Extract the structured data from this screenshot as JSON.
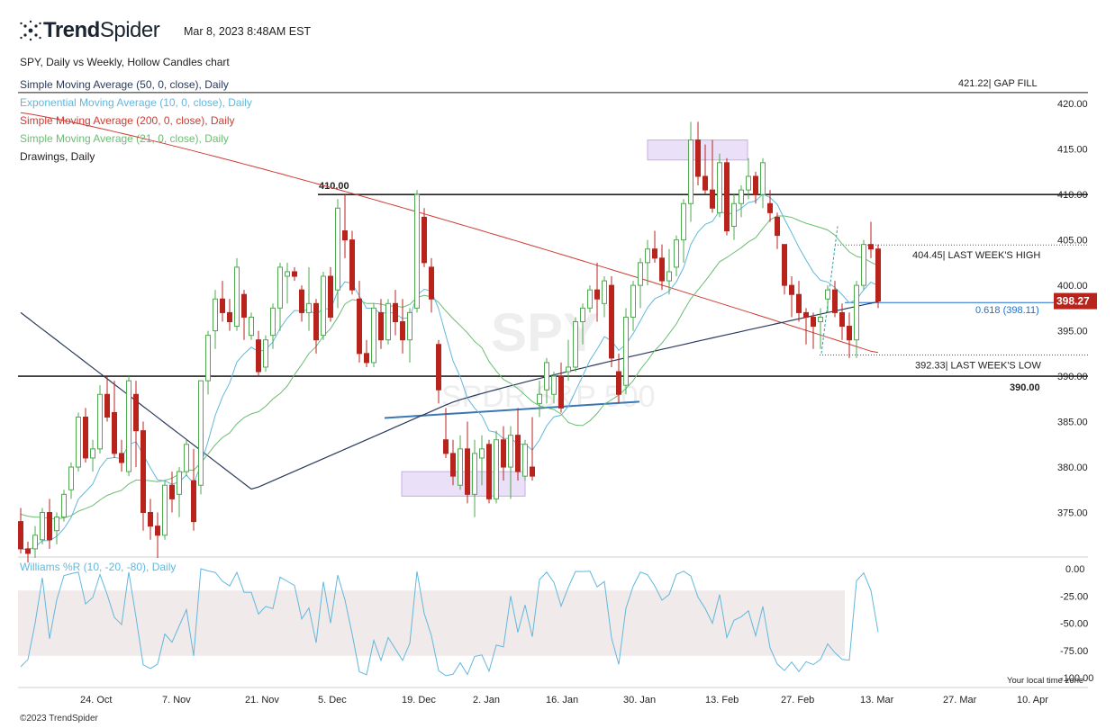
{
  "header": {
    "brand_prefix": "Trend",
    "brand_suffix": "Spider",
    "timestamp": "Mar 8, 2023 8:48AM EST",
    "chart_title": "SPY, Daily vs Weekly, Hollow Candles chart"
  },
  "legend": [
    {
      "label": "Simple Moving Average (50, 0, close), Daily",
      "color": "#2b3a5c"
    },
    {
      "label": "Exponential Moving Average (10, 0, close), Daily",
      "color": "#63b7dc"
    },
    {
      "label": "Simple Moving Average (200, 0, close), Daily",
      "color": "#cf3b33"
    },
    {
      "label": "Simple Moving Average (21, 0, close), Daily",
      "color": "#6cbd74"
    },
    {
      "label": "Drawings, Daily",
      "color": "#222222"
    }
  ],
  "watermark": {
    "symbol": "SPY",
    "name": "SPDR S&P 500"
  },
  "footer": {
    "copyright": "©2023 TrendSpider",
    "local_time": "Your local time zone"
  },
  "chart_data": {
    "type": "candlestick",
    "colors": {
      "up": "#4ea84e",
      "down": "#b8231c",
      "price_badge": "#b8231c",
      "fib": "#1e6fd1",
      "zone": "#e6d9f7",
      "zone_border": "#b79ae2"
    },
    "price_axis": {
      "min": 370,
      "max": 422,
      "ticks": [
        375,
        380,
        385,
        390,
        395,
        400,
        405,
        410,
        415,
        420
      ],
      "tick_labels": [
        "375.00",
        "380.00",
        "385.00",
        "390.00",
        "395.00",
        "400.00",
        "405.00",
        "410.00",
        "415.00",
        "420.00"
      ]
    },
    "x_axis": {
      "labels": [
        "24. Oct",
        "7. Nov",
        "21. Nov",
        "5. Dec",
        "19. Dec",
        "2. Jan",
        "16. Jan",
        "30. Jan",
        "13. Feb",
        "27. Feb",
        "13. Mar",
        "27. Mar",
        "10. Apr"
      ]
    },
    "current_price": "398.27",
    "levels": [
      {
        "value": 421.22,
        "label": "421.22| GAP FILL",
        "style": "solid"
      },
      {
        "value": 410.0,
        "label": "410.00",
        "style": "solid"
      },
      {
        "value": 390.0,
        "label": "390.00",
        "style": "solid"
      },
      {
        "value": 404.45,
        "label": "404.45| LAST WEEK'S HIGH",
        "style": "dotted"
      },
      {
        "value": 392.33,
        "label": "392.33| LAST WEEK'S LOW",
        "style": "dotted"
      },
      {
        "value": 398.11,
        "label": "0.618 (398.11)",
        "style": "fib"
      }
    ],
    "candles": [
      [
        374.0,
        375.5,
        370.5,
        371.0
      ],
      [
        371.0,
        371.8,
        369.5,
        370.5
      ],
      [
        371.0,
        373.5,
        370.0,
        372.5
      ],
      [
        372.0,
        375.5,
        371.5,
        375.0
      ],
      [
        375.0,
        376.5,
        371.0,
        372.0
      ],
      [
        373.0,
        375.0,
        371.5,
        374.5
      ],
      [
        374.5,
        377.5,
        374.0,
        377.0
      ],
      [
        377.5,
        380.5,
        376.5,
        380.0
      ],
      [
        380.0,
        386.0,
        379.5,
        385.5
      ],
      [
        385.5,
        386.5,
        380.5,
        381.0
      ],
      [
        381.0,
        383.0,
        379.5,
        382.0
      ],
      [
        382.0,
        389.0,
        381.5,
        388.0
      ],
      [
        388.0,
        390.0,
        385.0,
        385.5
      ],
      [
        386.0,
        389.5,
        381.0,
        381.5
      ],
      [
        381.5,
        383.0,
        379.5,
        380.5
      ],
      [
        379.5,
        390.0,
        379.0,
        389.5
      ],
      [
        388.0,
        389.5,
        380.0,
        384.0
      ],
      [
        384.0,
        385.0,
        373.0,
        375.0
      ],
      [
        375.0,
        376.5,
        372.0,
        373.5
      ],
      [
        373.5,
        375.0,
        370.0,
        372.5
      ],
      [
        372.5,
        378.5,
        372.0,
        378.0
      ],
      [
        378.0,
        379.5,
        375.0,
        376.5
      ],
      [
        377.0,
        380.0,
        374.5,
        379.5
      ],
      [
        379.5,
        383.0,
        379.0,
        382.5
      ],
      [
        378.5,
        382.0,
        373.0,
        374.0
      ],
      [
        378.0,
        389.5,
        377.0,
        389.5
      ],
      [
        389.5,
        395.0,
        388.0,
        394.5
      ],
      [
        395.0,
        399.5,
        393.0,
        398.5
      ],
      [
        398.5,
        400.5,
        396.0,
        397.0
      ],
      [
        397.0,
        398.5,
        395.0,
        396.0
      ],
      [
        395.5,
        403.0,
        395.0,
        402.0
      ],
      [
        399.0,
        399.5,
        394.0,
        396.5
      ],
      [
        394.5,
        397.0,
        394.0,
        396.5
      ],
      [
        394.0,
        395.0,
        390.0,
        390.5
      ],
      [
        391.0,
        394.5,
        390.5,
        394.0
      ],
      [
        394.5,
        398.0,
        393.0,
        397.5
      ],
      [
        397.5,
        402.5,
        395.0,
        402.0
      ],
      [
        401.0,
        402.5,
        398.0,
        401.5
      ],
      [
        401.5,
        402.0,
        400.5,
        401.0
      ],
      [
        399.5,
        400.0,
        396.0,
        397.0
      ],
      [
        397.0,
        402.0,
        395.0,
        398.0
      ],
      [
        398.0,
        398.5,
        392.5,
        394.0
      ],
      [
        394.5,
        401.5,
        394.0,
        401.0
      ],
      [
        401.0,
        402.0,
        396.0,
        396.5
      ],
      [
        399.5,
        409.5,
        397.5,
        408.5
      ],
      [
        406.0,
        410.0,
        403.0,
        405.0
      ],
      [
        405.0,
        406.0,
        399.0,
        399.5
      ],
      [
        398.5,
        400.5,
        391.5,
        392.5
      ],
      [
        392.5,
        394.0,
        391.0,
        391.5
      ],
      [
        391.5,
        398.0,
        391.0,
        397.5
      ],
      [
        397.0,
        398.5,
        393.0,
        394.0
      ],
      [
        394.0,
        398.5,
        393.5,
        398.0
      ],
      [
        398.0,
        399.5,
        394.5,
        396.0
      ],
      [
        396.0,
        398.5,
        392.5,
        394.0
      ],
      [
        394.0,
        397.5,
        391.5,
        397.0
      ],
      [
        397.5,
        410.5,
        397.0,
        410.0
      ],
      [
        407.5,
        408.5,
        402.0,
        402.5
      ],
      [
        402.0,
        403.0,
        397.0,
        398.5
      ],
      [
        393.5,
        394.0,
        387.0,
        388.5
      ],
      [
        383.0,
        386.5,
        381.0,
        381.5
      ],
      [
        381.5,
        383.0,
        378.0,
        379.0
      ],
      [
        378.0,
        383.5,
        377.5,
        382.0
      ],
      [
        382.0,
        385.0,
        376.0,
        377.0
      ],
      [
        377.0,
        383.0,
        374.5,
        381.5
      ],
      [
        381.0,
        383.5,
        378.0,
        382.0
      ],
      [
        382.5,
        383.0,
        376.0,
        376.5
      ],
      [
        376.5,
        384.0,
        376.0,
        383.0
      ],
      [
        383.0,
        384.5,
        378.5,
        380.0
      ],
      [
        380.0,
        384.5,
        376.5,
        383.5
      ],
      [
        383.5,
        386.5,
        378.5,
        379.5
      ],
      [
        379.0,
        383.0,
        378.5,
        382.5
      ],
      [
        380.0,
        385.5,
        378.5,
        379.0
      ],
      [
        387.0,
        389.5,
        385.5,
        388.0
      ],
      [
        388.5,
        392.0,
        387.0,
        391.5
      ],
      [
        388.0,
        390.5,
        387.0,
        390.0
      ],
      [
        390.0,
        391.5,
        386.0,
        386.5
      ],
      [
        390.5,
        394.0,
        389.5,
        391.0
      ],
      [
        391.0,
        396.5,
        390.5,
        396.0
      ],
      [
        396.0,
        398.0,
        393.5,
        397.5
      ],
      [
        397.5,
        400.0,
        397.0,
        399.5
      ],
      [
        399.5,
        402.5,
        396.0,
        398.5
      ],
      [
        398.0,
        401.0,
        396.5,
        400.5
      ],
      [
        400.0,
        401.0,
        391.0,
        392.0
      ],
      [
        390.5,
        392.5,
        387.0,
        388.0
      ],
      [
        389.0,
        397.5,
        388.0,
        396.5
      ],
      [
        396.5,
        400.5,
        395.0,
        400.0
      ],
      [
        400.0,
        403.0,
        397.5,
        402.5
      ],
      [
        402.5,
        405.0,
        400.0,
        404.0
      ],
      [
        404.0,
        406.0,
        402.5,
        403.0
      ],
      [
        403.0,
        404.5,
        399.5,
        400.5
      ],
      [
        400.5,
        404.0,
        399.0,
        401.5
      ],
      [
        402.0,
        405.5,
        401.0,
        405.0
      ],
      [
        405.0,
        409.5,
        402.5,
        409.0
      ],
      [
        409.0,
        418.0,
        407.0,
        416.0
      ],
      [
        416.0,
        418.0,
        411.0,
        412.0
      ],
      [
        412.0,
        415.5,
        410.0,
        410.5
      ],
      [
        410.5,
        416.0,
        408.0,
        408.5
      ],
      [
        408.0,
        414.5,
        407.5,
        413.5
      ],
      [
        413.5,
        414.0,
        405.5,
        406.0
      ],
      [
        406.5,
        410.0,
        405.0,
        409.0
      ],
      [
        409.0,
        411.0,
        407.5,
        410.5
      ],
      [
        410.5,
        414.0,
        409.5,
        412.0
      ],
      [
        412.0,
        412.5,
        409.0,
        410.0
      ],
      [
        410.0,
        414.0,
        408.5,
        413.5
      ],
      [
        409.0,
        410.5,
        407.0,
        408.0
      ],
      [
        407.5,
        408.0,
        404.0,
        405.5
      ],
      [
        404.5,
        404.5,
        399.0,
        400.0
      ],
      [
        400.0,
        401.0,
        396.5,
        399.0
      ],
      [
        399.0,
        400.5,
        396.0,
        397.0
      ],
      [
        397.0,
        397.5,
        393.5,
        396.5
      ],
      [
        396.5,
        397.0,
        393.0,
        395.5
      ],
      [
        396.0,
        397.5,
        393.0,
        396.5
      ],
      [
        398.5,
        400.0,
        397.0,
        399.5
      ],
      [
        399.5,
        400.5,
        396.5,
        397.0
      ],
      [
        397.0,
        398.0,
        394.0,
        395.5
      ],
      [
        395.5,
        397.0,
        392.0,
        394.0
      ],
      [
        394.0,
        400.5,
        392.0,
        400.0
      ],
      [
        400.0,
        405.0,
        399.5,
        404.5
      ],
      [
        404.5,
        407.0,
        403.0,
        404.0
      ],
      [
        404.0,
        404.5,
        397.5,
        398.27
      ]
    ],
    "indicators": {
      "williams_r": {
        "label": "Williams %R (10, -20, -80), Daily",
        "ticks": [
          "0.00",
          "-25.00",
          "-50.00",
          "-75.00",
          "-100.00"
        ],
        "overbought": -20,
        "oversold": -80
      }
    }
  }
}
